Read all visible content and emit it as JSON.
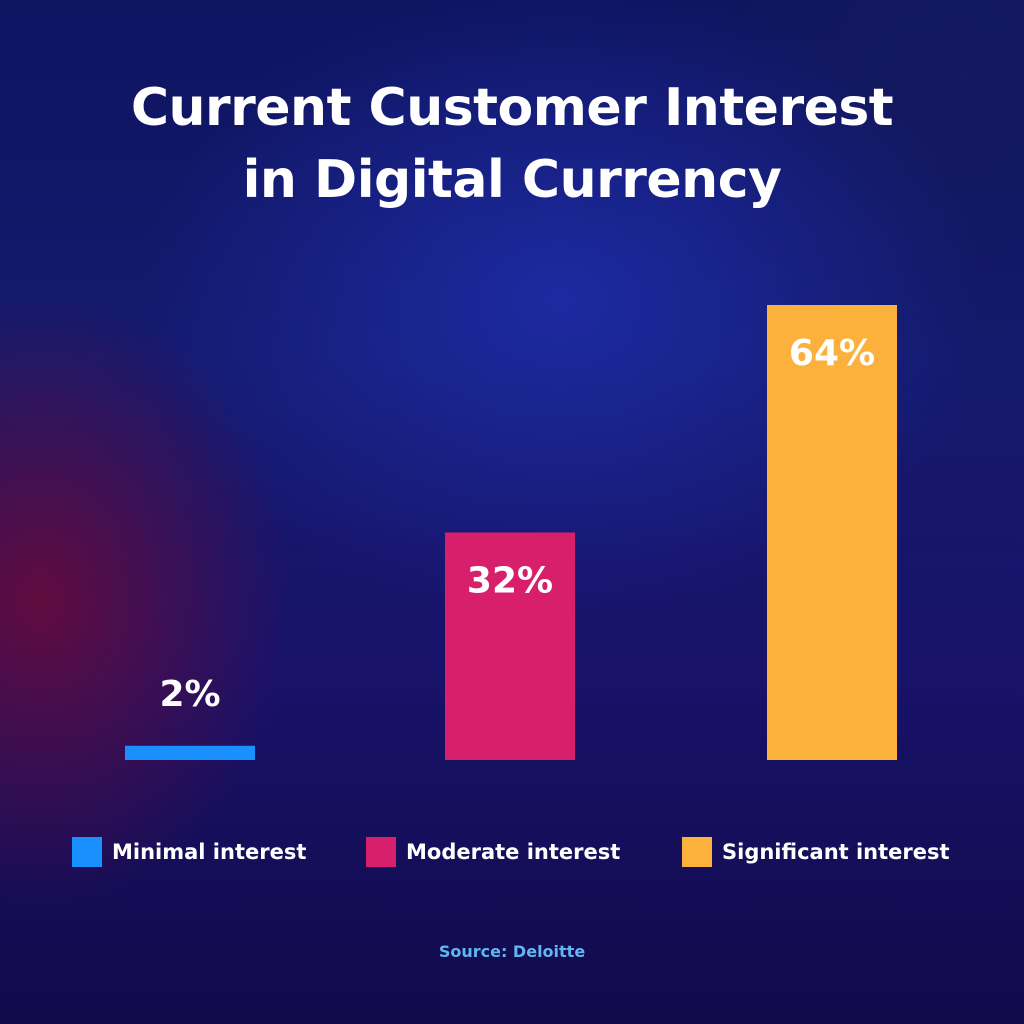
{
  "title_lines": [
    "Current Customer Interest",
    "in Digital Currency"
  ],
  "source": "Source: Deloitte",
  "chart_data": {
    "type": "bar",
    "categories": [
      "Minimal interest",
      "Moderate interest",
      "Significant interest"
    ],
    "values": [
      2,
      32,
      64
    ],
    "value_labels": [
      "2%",
      "32%",
      "64%"
    ],
    "colors": [
      "#1a90ff",
      "#d81f6c",
      "#fbb13c"
    ],
    "ylim": [
      0,
      64
    ],
    "grid": false,
    "legend_position": "bottom",
    "xlabel": "",
    "ylabel": ""
  },
  "legend": [
    {
      "label": "Minimal interest",
      "color": "#1a90ff"
    },
    {
      "label": "Moderate interest",
      "color": "#d81f6c"
    },
    {
      "label": "Significant interest",
      "color": "#fbb13c"
    }
  ]
}
